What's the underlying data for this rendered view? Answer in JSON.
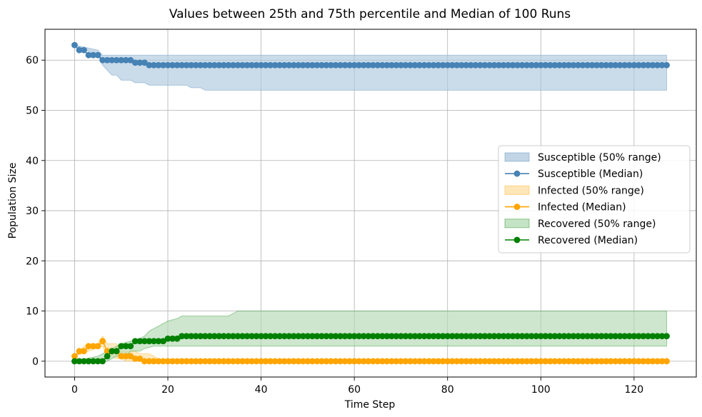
{
  "chart_data": {
    "type": "line",
    "title": "Values between 25th and 75th percentile and Median of 100 Runs",
    "xlabel": "Time Step",
    "ylabel": "Population Size",
    "xlim": [
      -6.35,
      133.35
    ],
    "ylim": [
      -3.15,
      66.15
    ],
    "xticks": [
      0,
      20,
      40,
      60,
      80,
      100,
      120
    ],
    "yticks": [
      0,
      10,
      20,
      30,
      40,
      50,
      60
    ],
    "grid": true,
    "legend_position": "center-right",
    "n_steps": 128,
    "series": [
      {
        "name": "Susceptible",
        "band_label": "Susceptible (50% range)",
        "median_label": "Susceptible (Median)",
        "color": "#4682b4",
        "band_color": "#aec7df",
        "median_points": [
          [
            0,
            63
          ],
          [
            1,
            62
          ],
          [
            2,
            62
          ],
          [
            3,
            61
          ],
          [
            4,
            61
          ],
          [
            5,
            61
          ],
          [
            6,
            60
          ],
          [
            7,
            60
          ],
          [
            8,
            60
          ],
          [
            9,
            60
          ],
          [
            10,
            60
          ],
          [
            11,
            60
          ],
          [
            12,
            60
          ],
          [
            13,
            59.5
          ],
          [
            14,
            59.5
          ],
          [
            15,
            59.5
          ],
          [
            16,
            59
          ],
          [
            127,
            59
          ]
        ],
        "lower_points": [
          [
            0,
            63
          ],
          [
            5,
            61
          ],
          [
            6,
            59
          ],
          [
            7,
            58
          ],
          [
            8,
            57
          ],
          [
            9,
            57
          ],
          [
            10,
            56
          ],
          [
            12,
            56
          ],
          [
            13,
            55.5
          ],
          [
            15,
            55.5
          ],
          [
            16,
            55
          ],
          [
            24,
            55
          ],
          [
            25,
            54.5
          ],
          [
            27,
            54.5
          ],
          [
            28,
            54
          ],
          [
            127,
            54
          ]
        ],
        "upper_points": [
          [
            0,
            63
          ],
          [
            5,
            62
          ],
          [
            6,
            61
          ],
          [
            127,
            61
          ]
        ]
      },
      {
        "name": "Infected",
        "band_label": "Infected (50% range)",
        "median_label": "Infected (Median)",
        "color": "#ffa500",
        "band_color": "#ffdfa3",
        "median_points": [
          [
            0,
            1
          ],
          [
            1,
            2
          ],
          [
            2,
            2
          ],
          [
            3,
            3
          ],
          [
            4,
            3
          ],
          [
            5,
            3
          ],
          [
            6,
            4
          ],
          [
            7,
            2
          ],
          [
            8,
            2
          ],
          [
            9,
            2
          ],
          [
            10,
            1
          ],
          [
            11,
            1
          ],
          [
            12,
            1
          ],
          [
            13,
            0.5
          ],
          [
            14,
            0.5
          ],
          [
            15,
            0
          ],
          [
            127,
            0
          ]
        ],
        "lower_points": [
          [
            0,
            1
          ],
          [
            3,
            2
          ],
          [
            6,
            3
          ],
          [
            7,
            1
          ],
          [
            8,
            1
          ],
          [
            9,
            0.5
          ],
          [
            10,
            0.5
          ],
          [
            11,
            0
          ],
          [
            127,
            0
          ]
        ],
        "upper_points": [
          [
            0,
            1
          ],
          [
            1,
            2
          ],
          [
            2,
            3
          ],
          [
            5,
            3.5
          ],
          [
            6,
            5
          ],
          [
            7,
            3.5
          ],
          [
            9,
            3.5
          ],
          [
            10,
            2
          ],
          [
            11,
            2
          ],
          [
            13,
            2
          ],
          [
            14,
            1.5
          ],
          [
            16,
            1.5
          ],
          [
            17,
            1
          ],
          [
            18,
            0.5
          ],
          [
            19,
            0
          ],
          [
            127,
            0
          ]
        ]
      },
      {
        "name": "Recovered",
        "band_label": "Recovered (50% range)",
        "median_label": "Recovered (Median)",
        "color": "#008000",
        "band_color": "#b2d9b2",
        "median_points": [
          [
            0,
            0
          ],
          [
            6,
            0
          ],
          [
            7,
            1
          ],
          [
            8,
            2
          ],
          [
            9,
            2
          ],
          [
            10,
            3
          ],
          [
            11,
            3
          ],
          [
            12,
            3
          ],
          [
            13,
            4
          ],
          [
            19,
            4
          ],
          [
            20,
            4.5
          ],
          [
            21,
            4.5
          ],
          [
            22,
            4.5
          ],
          [
            23,
            5
          ],
          [
            127,
            5
          ]
        ],
        "lower_points": [
          [
            0,
            0
          ],
          [
            7,
            0
          ],
          [
            8,
            0.5
          ],
          [
            9,
            1
          ],
          [
            11,
            1
          ],
          [
            12,
            2
          ],
          [
            14,
            2
          ],
          [
            15,
            2.5
          ],
          [
            17,
            3
          ],
          [
            127,
            3
          ]
        ],
        "upper_points": [
          [
            0,
            0
          ],
          [
            5,
            1
          ],
          [
            7,
            2
          ],
          [
            8,
            2.5
          ],
          [
            9,
            3
          ],
          [
            10,
            3.5
          ],
          [
            12,
            4
          ],
          [
            14,
            4.5
          ],
          [
            15,
            5
          ],
          [
            16,
            6
          ],
          [
            17,
            6.5
          ],
          [
            18,
            7
          ],
          [
            19,
            7.5
          ],
          [
            20,
            8
          ],
          [
            22,
            8.5
          ],
          [
            23,
            9
          ],
          [
            33,
            9
          ],
          [
            34,
            9.5
          ],
          [
            35,
            10
          ],
          [
            127,
            10
          ]
        ]
      }
    ]
  }
}
